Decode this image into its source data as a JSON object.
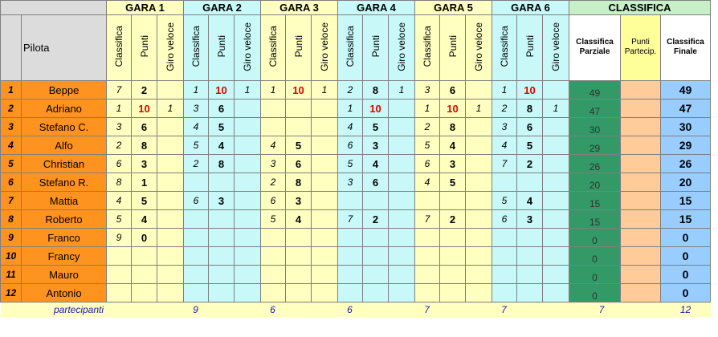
{
  "headers": {
    "gare": [
      "GARA 1",
      "GARA 2",
      "GARA 3",
      "GARA 4",
      "GARA 5",
      "GARA 6"
    ],
    "classifica": "CLASSIFICA",
    "pilota": "Pilota",
    "sub": [
      "Classifica",
      "Punti",
      "Giro veloce"
    ],
    "parziale": [
      "Classifica",
      "Parziale"
    ],
    "partecip": [
      "Punti",
      "Partecip."
    ],
    "finale": [
      "Classifica",
      "Finale"
    ]
  },
  "rows": [
    {
      "n": "1",
      "name": "Beppe",
      "g": [
        [
          "7",
          "2",
          ""
        ],
        [
          "1",
          "10",
          "1"
        ],
        [
          "1",
          "10",
          "1"
        ],
        [
          "2",
          "8",
          "1"
        ],
        [
          "3",
          "6",
          ""
        ],
        [
          "1",
          "10",
          ""
        ]
      ],
      "parz": "49",
      "fin": "49"
    },
    {
      "n": "2",
      "name": "Adriano",
      "g": [
        [
          "1",
          "10",
          "1"
        ],
        [
          "3",
          "6",
          ""
        ],
        [
          "",
          "",
          ""
        ],
        [
          "1",
          "10",
          ""
        ],
        [
          "1",
          "10",
          "1"
        ],
        [
          "2",
          "8",
          "1"
        ]
      ],
      "parz": "47",
      "fin": "47"
    },
    {
      "n": "3",
      "name": "Stefano C.",
      "g": [
        [
          "3",
          "6",
          ""
        ],
        [
          "4",
          "5",
          ""
        ],
        [
          "",
          "",
          ""
        ],
        [
          "4",
          "5",
          ""
        ],
        [
          "2",
          "8",
          ""
        ],
        [
          "3",
          "6",
          ""
        ]
      ],
      "parz": "30",
      "fin": "30"
    },
    {
      "n": "4",
      "name": "Alfo",
      "g": [
        [
          "2",
          "8",
          ""
        ],
        [
          "5",
          "4",
          ""
        ],
        [
          "4",
          "5",
          ""
        ],
        [
          "6",
          "3",
          ""
        ],
        [
          "5",
          "4",
          ""
        ],
        [
          "4",
          "5",
          ""
        ]
      ],
      "parz": "29",
      "fin": "29"
    },
    {
      "n": "5",
      "name": "Christian",
      "g": [
        [
          "6",
          "3",
          ""
        ],
        [
          "2",
          "8",
          ""
        ],
        [
          "3",
          "6",
          ""
        ],
        [
          "5",
          "4",
          ""
        ],
        [
          "6",
          "3",
          ""
        ],
        [
          "7",
          "2",
          ""
        ]
      ],
      "parz": "26",
      "fin": "26"
    },
    {
      "n": "6",
      "name": "Stefano R.",
      "g": [
        [
          "8",
          "1",
          ""
        ],
        [
          "",
          "",
          ""
        ],
        [
          "2",
          "8",
          ""
        ],
        [
          "3",
          "6",
          ""
        ],
        [
          "4",
          "5",
          ""
        ],
        [
          "",
          "",
          ""
        ]
      ],
      "parz": "20",
      "fin": "20"
    },
    {
      "n": "7",
      "name": "Mattia",
      "g": [
        [
          "4",
          "5",
          ""
        ],
        [
          "6",
          "3",
          ""
        ],
        [
          "6",
          "3",
          ""
        ],
        [
          "",
          "",
          ""
        ],
        [
          "",
          "",
          ""
        ],
        [
          "5",
          "4",
          ""
        ]
      ],
      "parz": "15",
      "fin": "15"
    },
    {
      "n": "8",
      "name": "Roberto",
      "g": [
        [
          "5",
          "4",
          ""
        ],
        [
          "",
          "",
          ""
        ],
        [
          "5",
          "4",
          ""
        ],
        [
          "7",
          "2",
          ""
        ],
        [
          "7",
          "2",
          ""
        ],
        [
          "6",
          "3",
          ""
        ]
      ],
      "parz": "15",
      "fin": "15"
    },
    {
      "n": "9",
      "name": "Franco",
      "g": [
        [
          "9",
          "0",
          ""
        ],
        [
          "",
          "",
          ""
        ],
        [
          "",
          "",
          ""
        ],
        [
          "",
          "",
          ""
        ],
        [
          "",
          "",
          ""
        ],
        [
          "",
          "",
          ""
        ]
      ],
      "parz": "0",
      "fin": "0"
    },
    {
      "n": "10",
      "name": "Francy",
      "g": [
        [
          "",
          "",
          ""
        ],
        [
          "",
          "",
          ""
        ],
        [
          "",
          "",
          ""
        ],
        [
          "",
          "",
          ""
        ],
        [
          "",
          "",
          ""
        ],
        [
          "",
          "",
          ""
        ]
      ],
      "parz": "0",
      "fin": "0"
    },
    {
      "n": "11",
      "name": "Mauro",
      "g": [
        [
          "",
          "",
          ""
        ],
        [
          "",
          "",
          ""
        ],
        [
          "",
          "",
          ""
        ],
        [
          "",
          "",
          ""
        ],
        [
          "",
          "",
          ""
        ],
        [
          "",
          "",
          ""
        ]
      ],
      "parz": "0",
      "fin": "0"
    },
    {
      "n": "12",
      "name": "Antonio",
      "g": [
        [
          "",
          "",
          ""
        ],
        [
          "",
          "",
          ""
        ],
        [
          "",
          "",
          ""
        ],
        [
          "",
          "",
          ""
        ],
        [
          "",
          "",
          ""
        ],
        [
          "",
          "",
          ""
        ]
      ],
      "parz": "0",
      "fin": "0"
    }
  ],
  "footer": {
    "label": "partecipanti",
    "counts": [
      "9",
      "6",
      "6",
      "7",
      "7",
      "7"
    ],
    "total": "12"
  }
}
